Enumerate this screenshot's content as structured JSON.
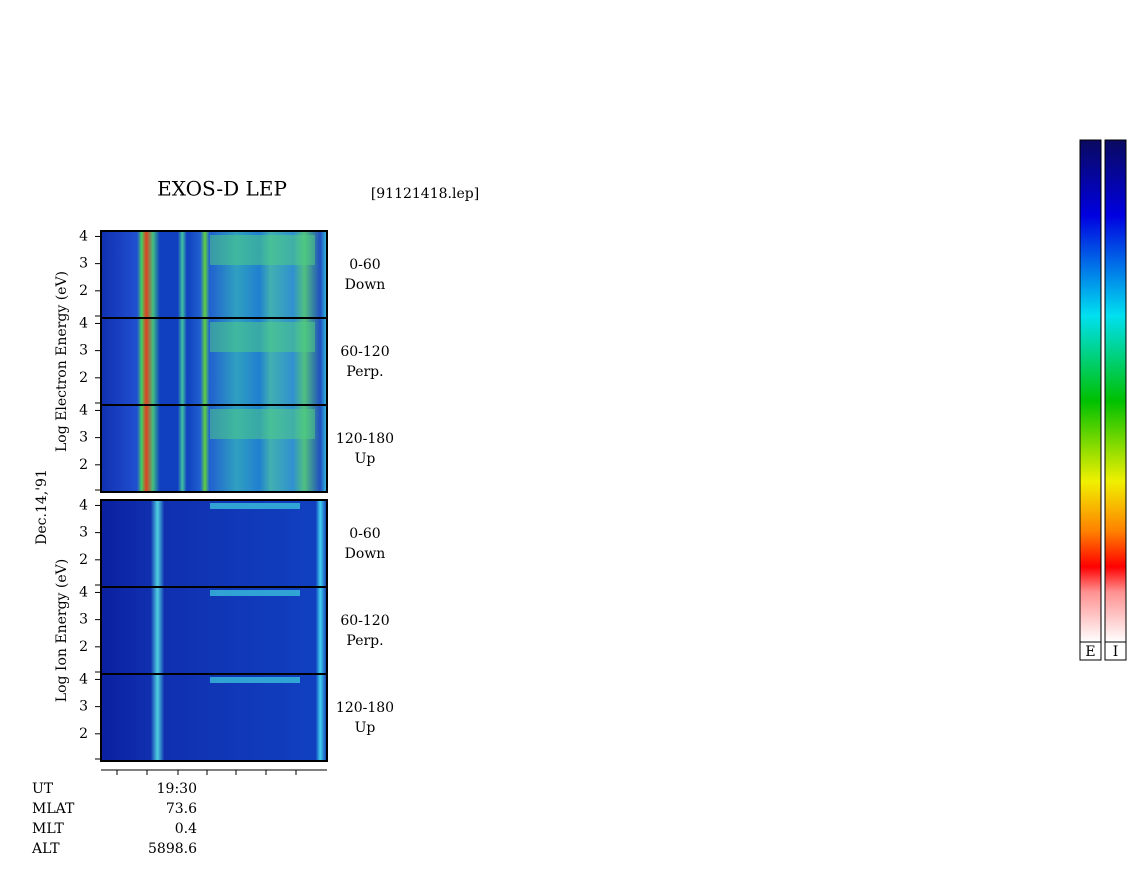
{
  "chart_data": {
    "type": "spectrogram",
    "title": "EXOS-D LEP",
    "file_label": "[91121418.lep]",
    "date_label": "Dec.14,'91",
    "ylim": [
      1,
      4.2
    ],
    "yticks": [
      2,
      3,
      4
    ],
    "groups": [
      {
        "ylabel": "Log  Electron  Energy (eV)",
        "kind": "electron",
        "panels": [
          {
            "angle": "0-60",
            "direction": "Down"
          },
          {
            "angle": "60-120",
            "direction": "Perp."
          },
          {
            "angle": "120-180",
            "direction": "Up"
          }
        ]
      },
      {
        "ylabel": "Log  Ion  Energy (eV)",
        "kind": "ion",
        "panels": [
          {
            "angle": "0-60",
            "direction": "Down"
          },
          {
            "angle": "60-120",
            "direction": "Perp."
          },
          {
            "angle": "120-180",
            "direction": "Up"
          }
        ]
      }
    ],
    "info": [
      [
        "UT",
        "19:30"
      ],
      [
        "MLAT",
        "73.6"
      ],
      [
        "MLT",
        "0.4"
      ],
      [
        "ALT",
        "5898.6"
      ]
    ],
    "colorbars": [
      "E",
      "I"
    ]
  }
}
